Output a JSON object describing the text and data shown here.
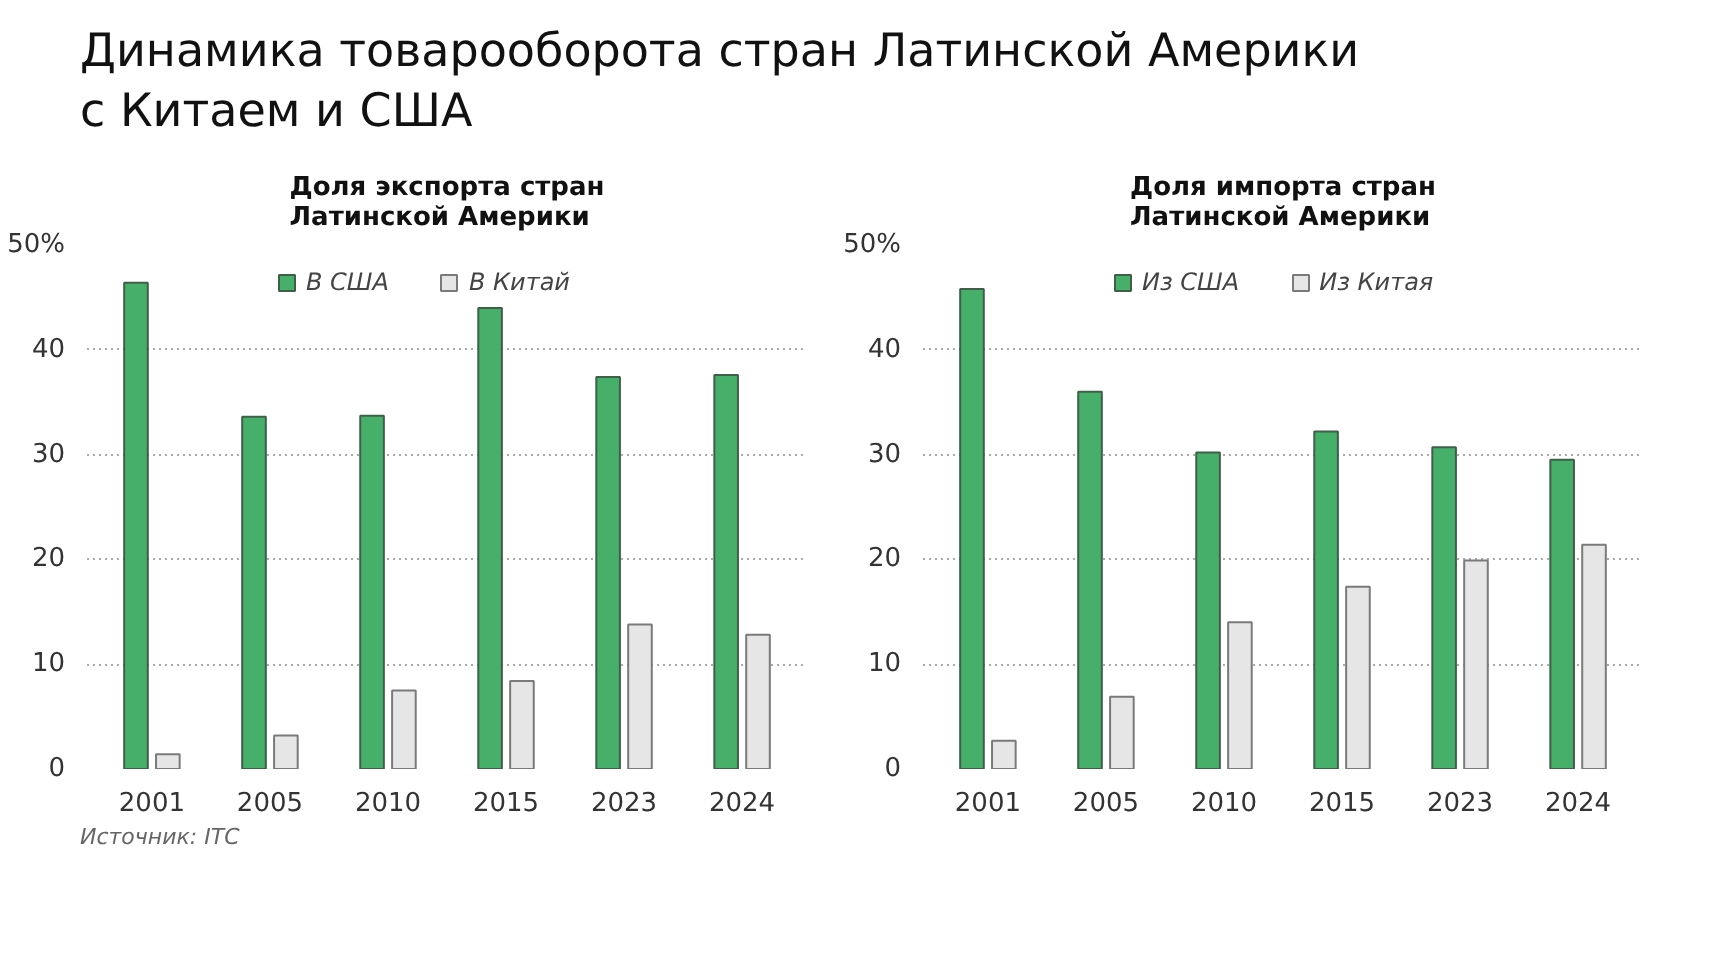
{
  "chart_data": [
    {
      "type": "bar",
      "title": "Динамика товарооборота стран Латинской Америки\nс Китаем и США",
      "subtitle": "Доля экспорта стран\nЛатинской Америки",
      "categories": [
        "2001",
        "2005",
        "2010",
        "2015",
        "2023",
        "2024"
      ],
      "series": [
        {
          "name": "В США",
          "color": "#46b06a",
          "values": [
            46.4,
            33.6,
            33.7,
            44.0,
            37.4,
            37.6
          ]
        },
        {
          "name": "В Китай",
          "color": "#e6e6e6",
          "values": [
            1.4,
            3.2,
            7.5,
            8.4,
            13.8,
            12.8
          ]
        }
      ],
      "ylim": [
        0,
        50
      ],
      "yticks": [
        0,
        10,
        20,
        30,
        40,
        {
          "value": 50,
          "label": "50%"
        }
      ],
      "grid": "y",
      "legend": "top",
      "annotations": [
        "Источник: ITC"
      ]
    },
    {
      "type": "bar",
      "subtitle": "Доля импорта стран\nЛатинской Америки",
      "categories": [
        "2001",
        "2005",
        "2010",
        "2015",
        "2023",
        "2024"
      ],
      "series": [
        {
          "name": "Из США",
          "color": "#46b06a",
          "values": [
            45.8,
            36.0,
            30.2,
            32.2,
            30.7,
            29.5
          ]
        },
        {
          "name": "Из Китая",
          "color": "#e6e6e6",
          "values": [
            2.7,
            6.9,
            14.0,
            17.4,
            19.9,
            21.4
          ]
        }
      ],
      "ylim": [
        0,
        50
      ],
      "yticks": [
        0,
        10,
        20,
        30,
        40,
        {
          "value": 50,
          "label": "50%"
        }
      ],
      "grid": "y",
      "legend": "top"
    }
  ]
}
